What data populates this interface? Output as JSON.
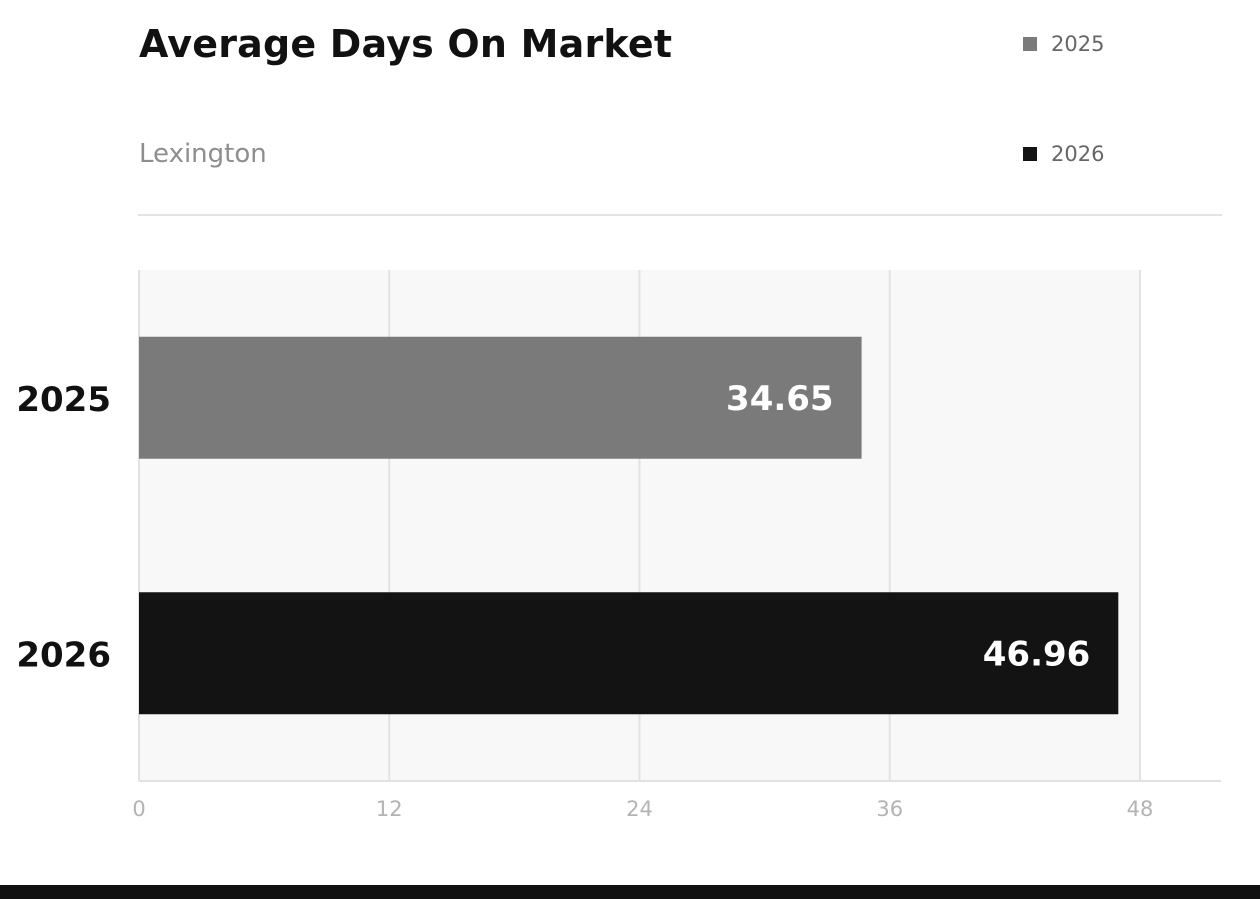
{
  "chart_data": {
    "type": "bar",
    "orientation": "horizontal",
    "title": "Average Days On Market",
    "subtitle": "Lexington",
    "categories": [
      "2025",
      "2026"
    ],
    "values": [
      34.65,
      46.96
    ],
    "value_labels": [
      "34.65",
      "46.96"
    ],
    "colors": [
      "#7a7a7a",
      "#131313"
    ],
    "xlim": [
      0,
      48
    ],
    "xticks": [
      0,
      12,
      24,
      36,
      48
    ],
    "xtick_labels": [
      "0",
      "12",
      "24",
      "36",
      "48"
    ],
    "xlabel": "",
    "ylabel": "",
    "grid": true,
    "legend_position": "top-right",
    "legend": [
      {
        "label": "2025",
        "color": "#7a7a7a"
      },
      {
        "label": "2026",
        "color": "#131313"
      }
    ]
  }
}
